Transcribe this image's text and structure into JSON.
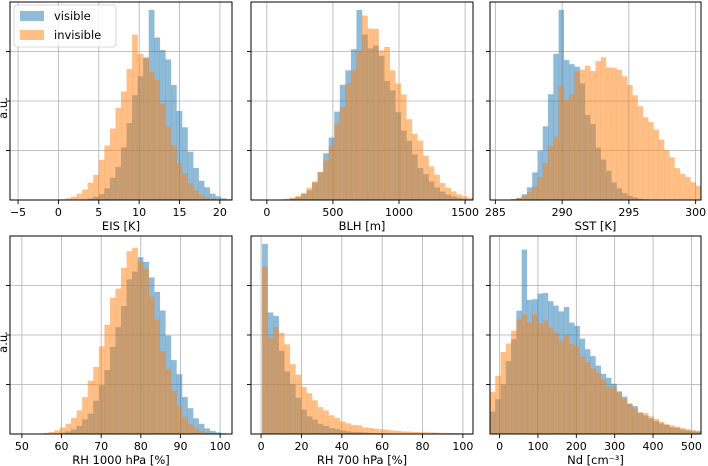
{
  "colors": {
    "visible": "#1f77b4",
    "invisible": "#ff7f0e",
    "grid": "#b0b0b0"
  },
  "legend": {
    "position": "top-left-of-first-panel",
    "entries": [
      "visible",
      "invisible"
    ]
  },
  "chart_data": [
    {
      "type": "histogram",
      "grid": true,
      "xlabel": "EIS [K]",
      "ylabel": "a.u.",
      "xlim": [
        -6,
        21.5
      ],
      "xticks": [
        -5,
        0,
        5,
        10,
        15,
        20
      ],
      "ymax": 1.0,
      "series": [
        {
          "name": "visible",
          "mu": 12.0,
          "sl": 2.6,
          "sr": 2.8,
          "peak_x": 11.8,
          "peak": 1.0,
          "amp": 0.87
        },
        {
          "name": "invisible",
          "mu": 10.2,
          "sl": 3.0,
          "sr": 2.9,
          "peak_x": 9.3,
          "peak": 0.87,
          "amp": 0.78
        }
      ]
    },
    {
      "type": "histogram",
      "grid": true,
      "xlabel": "BLH [m]",
      "ylabel": "",
      "xlim": [
        -120,
        1560
      ],
      "xticks": [
        0,
        500,
        1000,
        1500
      ],
      "ymax": 1.0,
      "series": [
        {
          "name": "visible",
          "mu": 720,
          "sl": 170,
          "sr": 250,
          "peak_x": 680,
          "peak": 1.0,
          "amp": 0.86
        },
        {
          "name": "invisible",
          "mu": 780,
          "sl": 200,
          "sr": 260,
          "peak_x": 760,
          "peak": 0.97,
          "amp": 0.86
        }
      ]
    },
    {
      "type": "histogram",
      "grid": true,
      "xlabel": "SST [K]",
      "ylabel": "",
      "xlim": [
        284.6,
        300.4
      ],
      "xticks": [
        285,
        290,
        295,
        300
      ],
      "ymax": 1.0,
      "series": [
        {
          "name": "visible",
          "mu": 290.0,
          "sl": 1.1,
          "sr": 1.9,
          "peak_x": 289.8,
          "peak": 1.0,
          "amp": 0.79
        },
        {
          "name": "invisible",
          "mu": 291.0,
          "sl": 1.5,
          "sr": 4.5,
          "peak_x": 290.1,
          "peak": 0.6,
          "amp": 0.5,
          "mu2": 294.2,
          "s2": 2.4,
          "amp2": 0.3
        }
      ]
    },
    {
      "type": "histogram",
      "grid": true,
      "xlabel": "RH 1000 hPa [%]",
      "ylabel": "a.u.",
      "xlim": [
        47,
        103
      ],
      "xticks": [
        50,
        60,
        70,
        80,
        90,
        100
      ],
      "ymax": 1.0,
      "series": [
        {
          "name": "visible",
          "mu": 80.5,
          "sl": 6.5,
          "sr": 6.2,
          "peak_x": 80.3,
          "peak": 0.93,
          "amp": 0.9
        },
        {
          "name": "invisible",
          "mu": 78.5,
          "sl": 7.0,
          "sr": 5.8,
          "peak_x": 78.3,
          "peak": 0.98,
          "amp": 0.95
        }
      ]
    },
    {
      "type": "histogram",
      "grid": true,
      "xlabel": "RH 700 hPa [%]",
      "ylabel": "",
      "xlim": [
        -5,
        105
      ],
      "xticks": [
        0,
        20,
        40,
        60,
        80,
        100
      ],
      "ymax": 1.0,
      "series": [
        {
          "name": "visible",
          "lognorm": true,
          "median": 5.5,
          "sigma": 0.75,
          "peak_x": 3.0,
          "peak": 1.0,
          "amp": 0.65
        },
        {
          "name": "invisible",
          "lognorm": true,
          "median": 7.0,
          "sigma": 0.85,
          "peak_x": 3.0,
          "peak": 0.88,
          "amp": 0.58
        }
      ]
    },
    {
      "type": "histogram",
      "grid": true,
      "xlabel": "Nd [cm⁻³]",
      "ylabel": "",
      "xlim": [
        -25,
        525
      ],
      "xticks": [
        0,
        100,
        200,
        300,
        400,
        500
      ],
      "ymax": 1.0,
      "series": [
        {
          "name": "visible",
          "mu": 80,
          "sl": 45,
          "sr": 130,
          "peak_x": 70,
          "peak": 0.97,
          "amp": 0.62,
          "mu2": 170,
          "s2": 150,
          "amp2": 0.15
        },
        {
          "name": "invisible",
          "mu": 60,
          "sl": 55,
          "sr": 170,
          "peak_x": 60,
          "peak": 0.63,
          "amp": 0.62
        }
      ]
    }
  ]
}
